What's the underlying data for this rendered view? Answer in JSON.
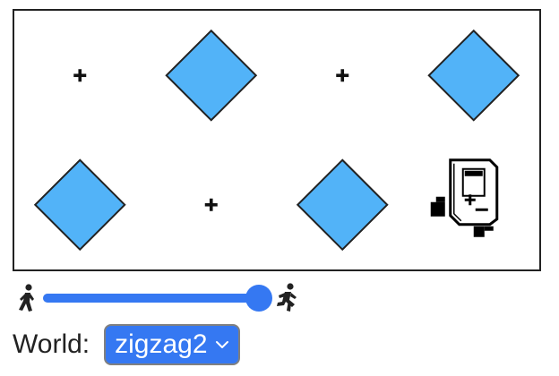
{
  "world": {
    "columns": 4,
    "rows": 2,
    "cells": [
      {
        "row": 0,
        "col": 0,
        "type": "marker"
      },
      {
        "row": 0,
        "col": 1,
        "type": "gem"
      },
      {
        "row": 0,
        "col": 2,
        "type": "marker"
      },
      {
        "row": 0,
        "col": 3,
        "type": "gem"
      },
      {
        "row": 1,
        "col": 0,
        "type": "gem"
      },
      {
        "row": 1,
        "col": 1,
        "type": "marker"
      },
      {
        "row": 1,
        "col": 2,
        "type": "gem"
      },
      {
        "row": 1,
        "col": 3,
        "type": "robot"
      }
    ],
    "gem_color": "#52b3f8",
    "outline_color": "#222222"
  },
  "speed": {
    "value_fraction": 0.95,
    "slow_icon": "walker-icon",
    "fast_icon": "runner-icon",
    "accent": "#3578f2"
  },
  "world_picker": {
    "label": "World:",
    "selected": "zigzag2"
  }
}
